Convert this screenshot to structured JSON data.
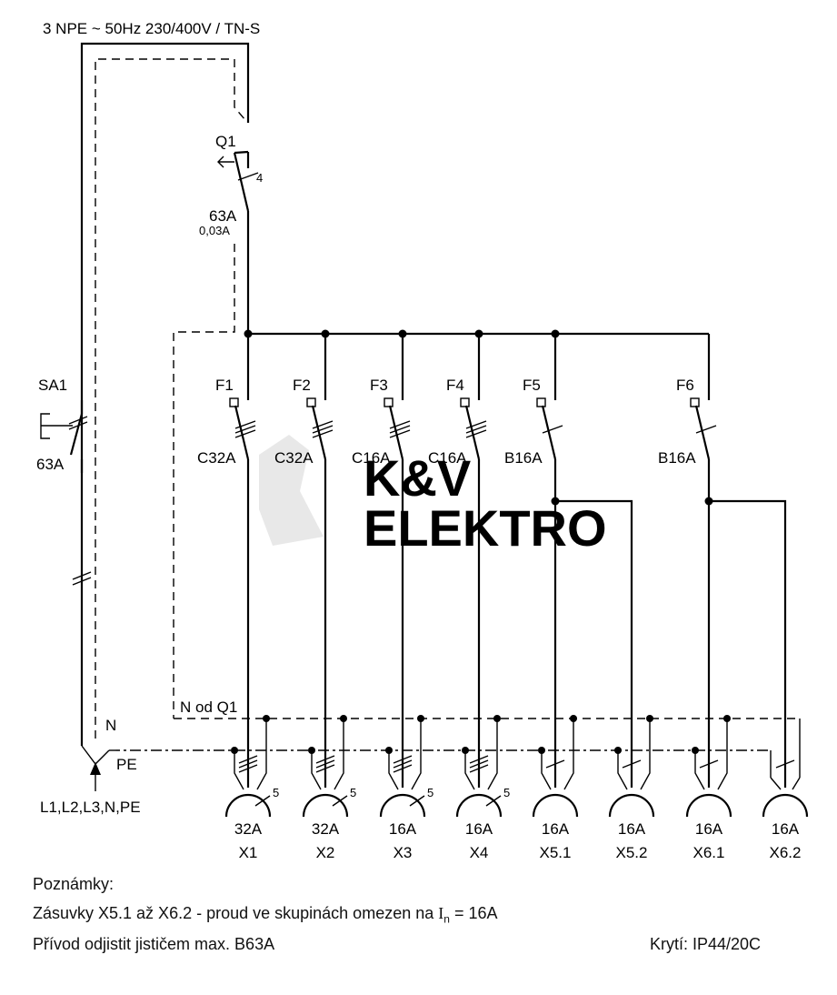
{
  "supply_label": "3 NPE ~ 50Hz  230/400V / TN-S",
  "watermark": {
    "line1": "K&V",
    "line2": "ELEKTRO"
  },
  "main_switch": {
    "name": "SA1",
    "rating": "63A"
  },
  "rcd": {
    "name": "Q1",
    "poles": "4",
    "rating": "63A",
    "residual": "0,03A"
  },
  "breakers": [
    {
      "name": "F1",
      "rating": "C32A"
    },
    {
      "name": "F2",
      "rating": "C32A"
    },
    {
      "name": "F3",
      "rating": "C16A"
    },
    {
      "name": "F4",
      "rating": "C16A"
    },
    {
      "name": "F5",
      "rating": "B16A"
    },
    {
      "name": "F6",
      "rating": "B16A"
    }
  ],
  "n_label": "N od Q1",
  "conductor_labels": {
    "n": "N",
    "pe": "PE",
    "feed": "L1,L2,L3,N,PE"
  },
  "sockets": [
    {
      "rating": "32A",
      "name": "X1",
      "wires": "5"
    },
    {
      "rating": "32A",
      "name": "X2",
      "wires": "5"
    },
    {
      "rating": "16A",
      "name": "X3",
      "wires": "5"
    },
    {
      "rating": "16A",
      "name": "X4",
      "wires": "5"
    },
    {
      "rating": "16A",
      "name": "X5.1"
    },
    {
      "rating": "16A",
      "name": "X5.2"
    },
    {
      "rating": "16A",
      "name": "X6.1"
    },
    {
      "rating": "16A",
      "name": "X6.2"
    }
  ],
  "notes": {
    "heading": "Poznámky:",
    "line1_prefix": "Zásuvky X5.1 až X6.2 - proud ve skupinách omezen na ",
    "line1_symbol": "I",
    "line1_sub": "n",
    "line1_suffix": " = 16A",
    "line2": "Přívod odjistit jističem max. B63A",
    "protection": "Krytí: IP44/20C"
  }
}
